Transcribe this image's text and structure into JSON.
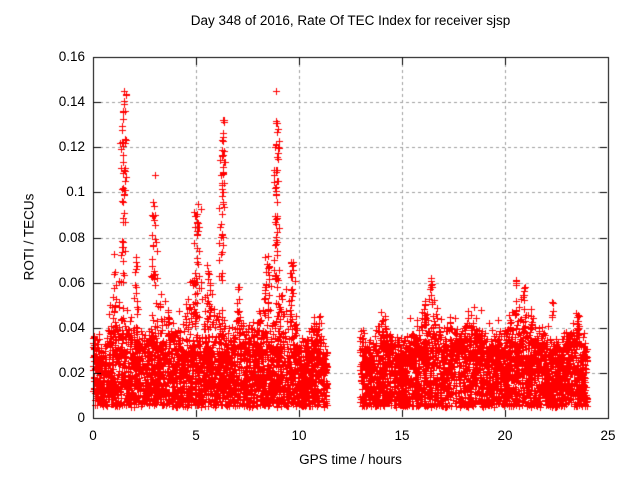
{
  "chart_data": {
    "type": "scatter",
    "title": "Day 348 of 2016, Rate Of TEC Index for receiver sjsp",
    "xlabel": "GPS time / hours",
    "ylabel": "ROTI / TECUs",
    "xlim": [
      0,
      25
    ],
    "ylim": [
      0,
      0.16
    ],
    "xticks": [
      0,
      5,
      10,
      15,
      20,
      25
    ],
    "yticks": [
      0,
      0.02,
      0.04,
      0.06,
      0.08,
      0.1,
      0.12,
      0.14,
      0.16
    ],
    "grid": {
      "visible": true,
      "style": "dashed",
      "color": "#a0a0a0"
    },
    "marker": {
      "shape": "plus",
      "size": 7,
      "color": "#ff0000"
    },
    "background": "#ffffff",
    "legend": "none",
    "series_name": "ROTI",
    "data_gaps": [
      [
        11.35,
        12.95
      ]
    ],
    "seed": 348,
    "base_bands": [
      {
        "t_start": 0,
        "t_end": 11.35,
        "points": 3300,
        "y_floor": 0.005,
        "envelope": [
          [
            0,
            0.045
          ],
          [
            0.5,
            0.032
          ],
          [
            1,
            0.052
          ],
          [
            1.5,
            0.048
          ],
          [
            2,
            0.042
          ],
          [
            2.5,
            0.038
          ],
          [
            3,
            0.048
          ],
          [
            3.5,
            0.05
          ],
          [
            4,
            0.042
          ],
          [
            4.5,
            0.055
          ],
          [
            5,
            0.06
          ],
          [
            5.5,
            0.052
          ],
          [
            6,
            0.058
          ],
          [
            6.5,
            0.035
          ],
          [
            7,
            0.045
          ],
          [
            7.5,
            0.04
          ],
          [
            8,
            0.045
          ],
          [
            8.5,
            0.058
          ],
          [
            9,
            0.052
          ],
          [
            9.5,
            0.058
          ],
          [
            10,
            0.035
          ],
          [
            10.5,
            0.036
          ],
          [
            11,
            0.044
          ],
          [
            11.35,
            0.03
          ]
        ]
      },
      {
        "t_start": 12.95,
        "t_end": 24.0,
        "points": 3300,
        "y_floor": 0.005,
        "envelope": [
          [
            12.95,
            0.04
          ],
          [
            13.5,
            0.034
          ],
          [
            14,
            0.045
          ],
          [
            14.5,
            0.04
          ],
          [
            15,
            0.034
          ],
          [
            15.5,
            0.04
          ],
          [
            16,
            0.046
          ],
          [
            16.5,
            0.05
          ],
          [
            17,
            0.036
          ],
          [
            17.5,
            0.042
          ],
          [
            18,
            0.04
          ],
          [
            18.5,
            0.046
          ],
          [
            19,
            0.04
          ],
          [
            19.5,
            0.038
          ],
          [
            20,
            0.044
          ],
          [
            20.5,
            0.05
          ],
          [
            21,
            0.046
          ],
          [
            21.5,
            0.04
          ],
          [
            22,
            0.038
          ],
          [
            22.5,
            0.034
          ],
          [
            23,
            0.04
          ],
          [
            23.5,
            0.044
          ],
          [
            24,
            0.032
          ]
        ]
      }
    ],
    "spike_clusters": [
      {
        "t": 1.05,
        "t_width": 0.2,
        "y_min": 0.045,
        "y_max": 0.078,
        "points": 12
      },
      {
        "t": 1.45,
        "t_width": 0.3,
        "y_min": 0.06,
        "y_max": 0.145,
        "points": 55
      },
      {
        "t": 2.1,
        "t_width": 0.25,
        "y_min": 0.045,
        "y_max": 0.072,
        "points": 15
      },
      {
        "t": 2.95,
        "t_width": 0.3,
        "y_min": 0.055,
        "y_max": 0.108,
        "points": 24
      },
      {
        "t": 5.05,
        "t_width": 0.35,
        "y_min": 0.05,
        "y_max": 0.098,
        "points": 30
      },
      {
        "t": 5.6,
        "t_width": 0.2,
        "y_min": 0.045,
        "y_max": 0.075,
        "points": 14
      },
      {
        "t": 6.25,
        "t_width": 0.3,
        "y_min": 0.06,
        "y_max": 0.136,
        "points": 48
      },
      {
        "t": 7.05,
        "t_width": 0.2,
        "y_min": 0.04,
        "y_max": 0.06,
        "points": 10
      },
      {
        "t": 8.45,
        "t_width": 0.25,
        "y_min": 0.045,
        "y_max": 0.072,
        "points": 18
      },
      {
        "t": 8.9,
        "t_width": 0.25,
        "y_min": 0.06,
        "y_max": 0.132,
        "points": 52
      },
      {
        "t": 8.88,
        "t_width": 0.02,
        "y_min": 0.143,
        "y_max": 0.145,
        "points": 1
      },
      {
        "t": 9.65,
        "t_width": 0.25,
        "y_min": 0.042,
        "y_max": 0.072,
        "points": 20
      },
      {
        "t": 10.8,
        "t_width": 0.3,
        "y_min": 0.033,
        "y_max": 0.047,
        "points": 10
      },
      {
        "t": 14.1,
        "t_width": 0.25,
        "y_min": 0.035,
        "y_max": 0.048,
        "points": 10
      },
      {
        "t": 16.1,
        "t_width": 0.25,
        "y_min": 0.04,
        "y_max": 0.052,
        "points": 14
      },
      {
        "t": 16.4,
        "t_width": 0.15,
        "y_min": 0.05,
        "y_max": 0.063,
        "points": 10
      },
      {
        "t": 20.55,
        "t_width": 0.15,
        "y_min": 0.045,
        "y_max": 0.063,
        "points": 8
      },
      {
        "t": 20.95,
        "t_width": 0.15,
        "y_min": 0.04,
        "y_max": 0.06,
        "points": 10
      },
      {
        "t": 21.3,
        "t_width": 0.15,
        "y_min": 0.036,
        "y_max": 0.046,
        "points": 6
      },
      {
        "t": 22.3,
        "t_width": 0.12,
        "y_min": 0.044,
        "y_max": 0.053,
        "points": 5
      },
      {
        "t": 23.5,
        "t_width": 0.2,
        "y_min": 0.034,
        "y_max": 0.047,
        "points": 8
      }
    ]
  }
}
